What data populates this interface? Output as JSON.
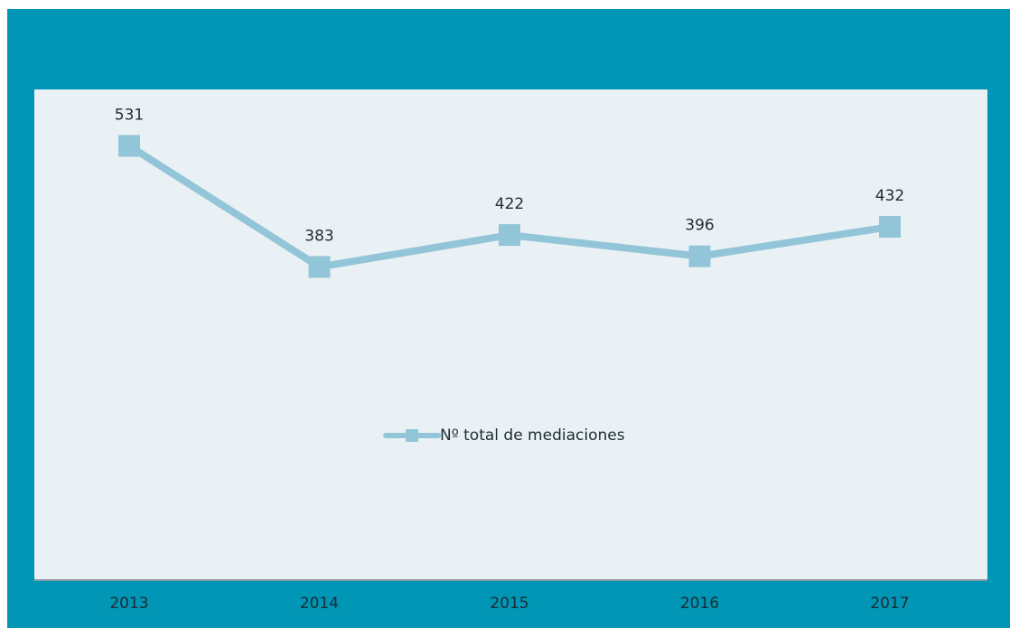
{
  "chart_data": {
    "type": "line",
    "categories": [
      "2013",
      "2014",
      "2015",
      "2016",
      "2017"
    ],
    "series": [
      {
        "name": "Nº total de mediaciones",
        "color": "#93c5d8",
        "values": [
          531,
          383,
          422,
          396,
          432
        ]
      }
    ],
    "ylim": [
      0,
      600
    ],
    "legend": "center"
  }
}
